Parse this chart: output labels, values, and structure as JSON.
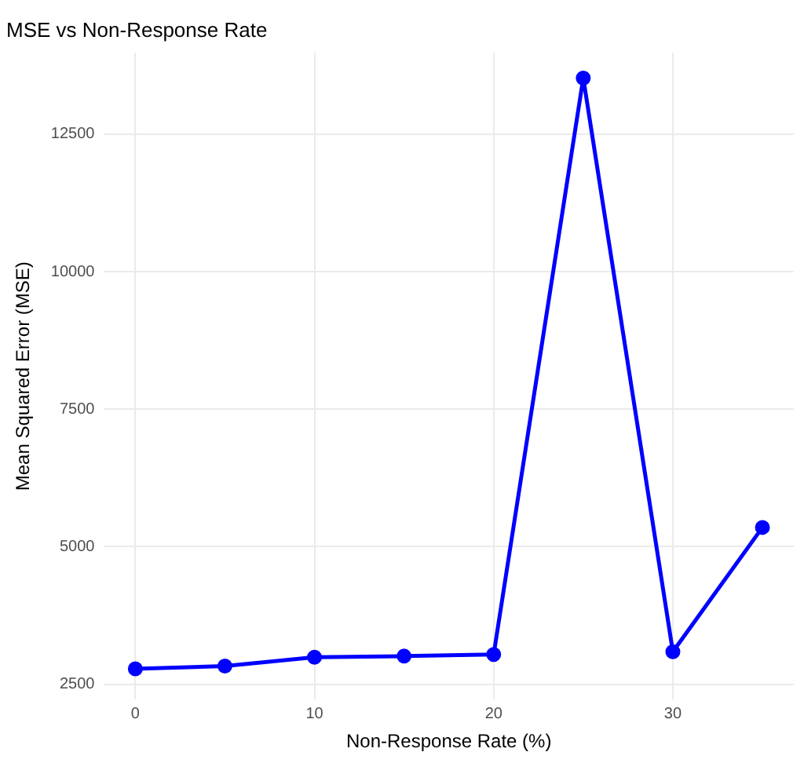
{
  "chart_data": {
    "type": "line",
    "title": "MSE vs Non-Response Rate",
    "xlabel": "Non-Response Rate (%)",
    "ylabel": "Mean Squared Error (MSE)",
    "x": [
      0,
      5,
      10,
      15,
      20,
      25,
      30,
      35
    ],
    "series": [
      {
        "color": "#0000ff",
        "values": [
          2780,
          2830,
          2990,
          3010,
          3040,
          13520,
          3090,
          5350
        ]
      }
    ],
    "xlim": [
      -1.75,
      36.75
    ],
    "xticks": [
      0,
      10,
      20,
      30
    ],
    "ylim": [
      2220,
      13980
    ],
    "yticks": [
      2500,
      5000,
      7500,
      10000,
      12500
    ],
    "grid": true,
    "marker": "circle",
    "line_style": "solid",
    "legend": false
  }
}
